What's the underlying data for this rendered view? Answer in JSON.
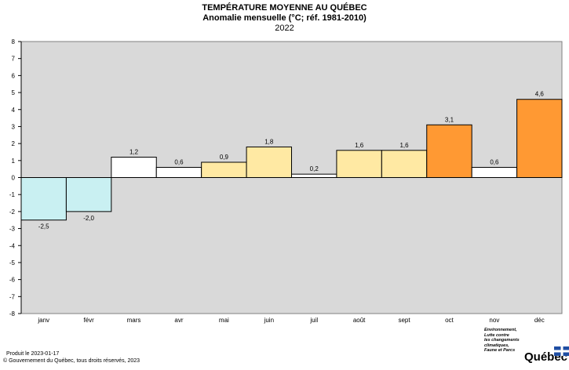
{
  "title": "TEMPÉRATURE MOYENNE AU QUÉBEC",
  "subtitle": "Anomalie mensuelle (°C; réf. 1981-2010)",
  "year": "2022",
  "footer": {
    "produced": "Produit le 2023-01-17",
    "copyright": "© Gouvernement du Québec, tous droits réservés, 2023"
  },
  "ministry_lines": [
    "Environnement,",
    "Lutte contre",
    "les changements",
    "climatiques,",
    "Faune et Parcs"
  ],
  "brand": "Québec",
  "colors": {
    "plot_bg": "#d9d9d9",
    "negative": "#c9f0f2",
    "low": "#ffffff",
    "mid": "#ffe9a3",
    "high": "#ff9933",
    "brand_blue": "#1f4ea3"
  },
  "chart_data": {
    "type": "bar",
    "title": "TEMPÉRATURE MOYENNE AU QUÉBEC",
    "subtitle": "Anomalie mensuelle (°C; réf. 1981-2010)",
    "categories": [
      "janv",
      "févr",
      "mars",
      "avr",
      "mai",
      "juin",
      "juil",
      "août",
      "sept",
      "oct",
      "nov",
      "déc"
    ],
    "values": [
      -2.5,
      -2.0,
      1.2,
      0.6,
      0.9,
      1.8,
      0.2,
      1.6,
      1.6,
      3.1,
      0.6,
      4.6
    ],
    "value_labels": [
      "-2,5",
      "-2,0",
      "1,2",
      "0,6",
      "0,9",
      "1,8",
      "0,2",
      "1,6",
      "1,6",
      "3,1",
      "0,6",
      "4,6"
    ],
    "bar_colors": [
      "#c9f0f2",
      "#c9f0f2",
      "#ffffff",
      "#ffffff",
      "#ffe9a3",
      "#ffe9a3",
      "#ffffff",
      "#ffe9a3",
      "#ffe9a3",
      "#ff9933",
      "#ffffff",
      "#ff9933"
    ],
    "ylim": [
      -8,
      8
    ],
    "yticks": [
      8,
      7,
      6,
      5,
      4,
      3,
      2,
      1,
      0,
      -1,
      -2,
      -3,
      -4,
      -5,
      -6,
      -7,
      -8
    ],
    "xlabel": "",
    "ylabel": "",
    "grid": false,
    "legend": false
  }
}
